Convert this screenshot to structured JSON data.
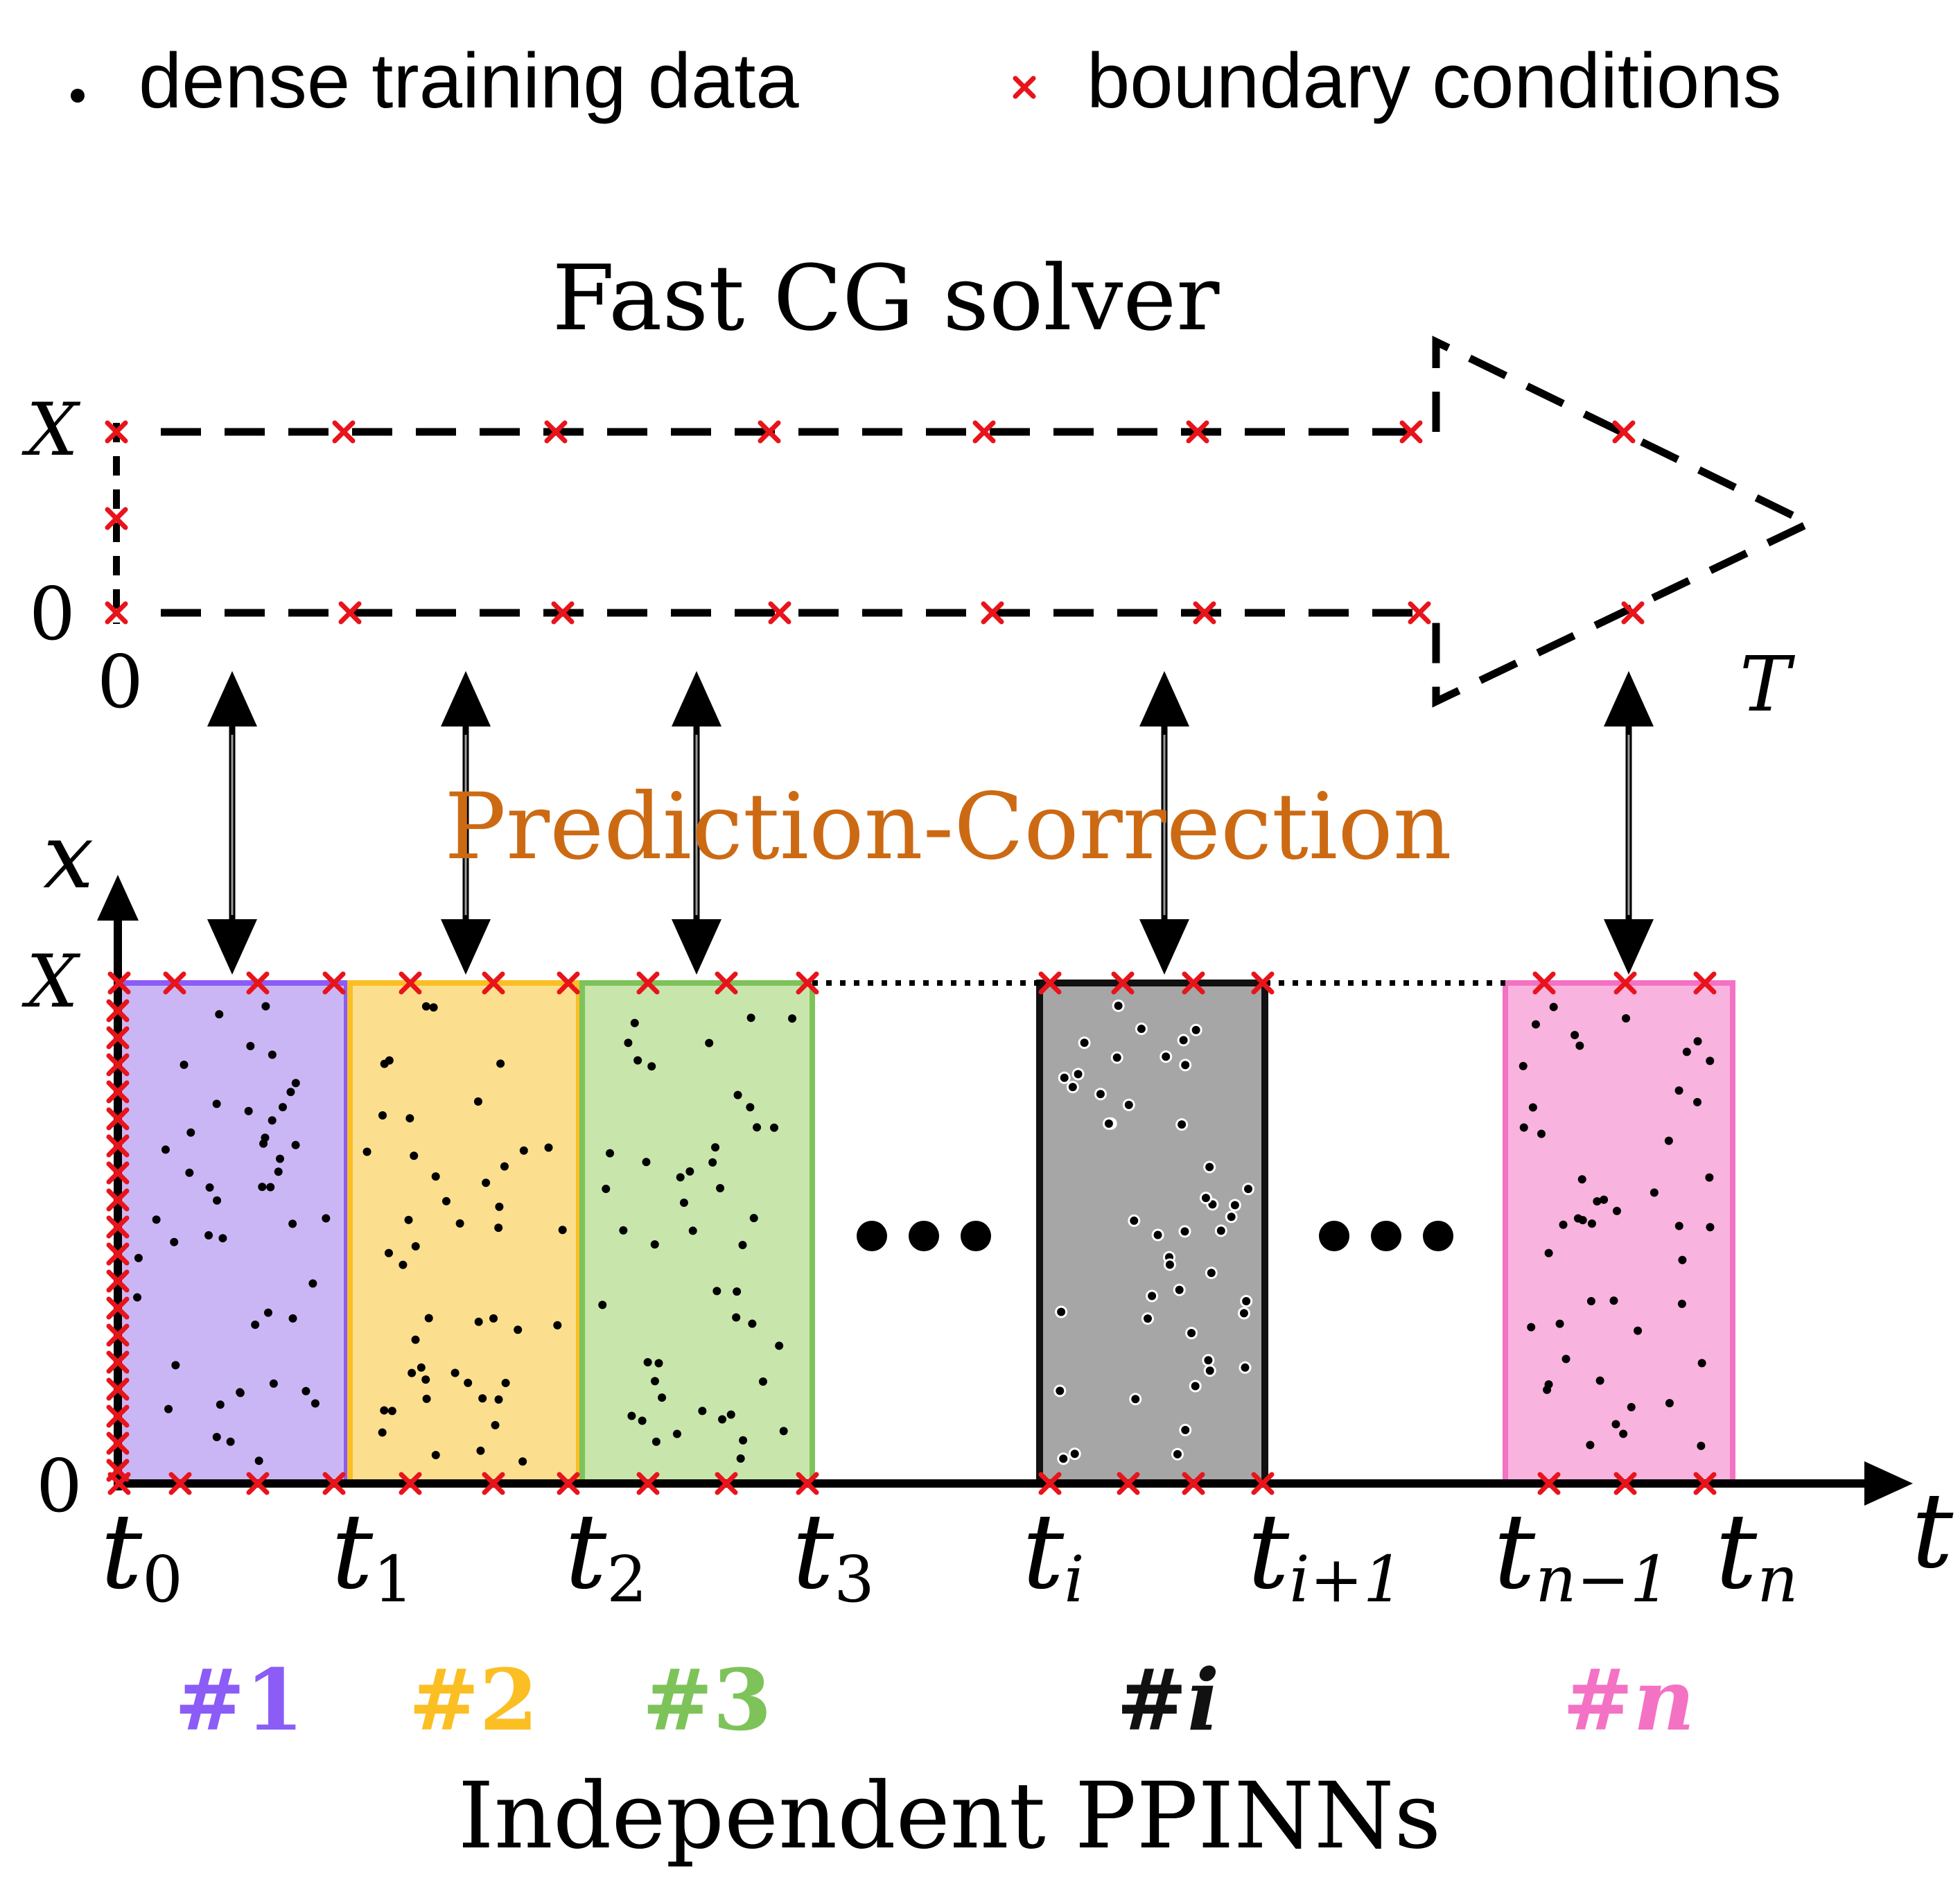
{
  "legend": {
    "dot_label": "dense training data",
    "cross_label": "boundary conditions"
  },
  "solver_title": "Fast CG solver",
  "coarse_axis": {
    "x_top": "X",
    "x_bottom": "0",
    "t_start": "0",
    "t_end": "T"
  },
  "coupling_label": "Prediction-Correction",
  "fine_axis": {
    "x_label": "x",
    "x_top": "X",
    "x_bottom": "0",
    "t_label": "t"
  },
  "time_ticks": [
    {
      "base": "t",
      "sub": "0"
    },
    {
      "base": "t",
      "sub": "1"
    },
    {
      "base": "t",
      "sub": "2"
    },
    {
      "base": "t",
      "sub": "3"
    },
    {
      "base": "t",
      "sub": "i"
    },
    {
      "base": "t",
      "sub": "i+1"
    },
    {
      "base": "t",
      "sub": "n−1"
    },
    {
      "base": "t",
      "sub": "n"
    }
  ],
  "subdomains": [
    {
      "label": "#1",
      "fill": "#cbb6f5",
      "stroke": "#8b5cf6",
      "text_color": "#8b5cf6"
    },
    {
      "label": "#2",
      "fill": "#fbdf8f",
      "stroke": "#fbbf24",
      "text_color": "#fbbf24"
    },
    {
      "label": "#3",
      "fill": "#c8e6ac",
      "stroke": "#7dc35a",
      "text_color": "#7dc35a"
    },
    {
      "label": "#i",
      "fill": "#a6a6a6",
      "stroke": "#111111",
      "text_color": "#111111"
    },
    {
      "label": "#n",
      "fill": "#f9b3df",
      "stroke": "#f472c4",
      "text_color": "#f472c4"
    }
  ],
  "ellipsis": "•••",
  "bottom_title": "Independent PPINNs",
  "colors": {
    "cross": "#e8141b",
    "ink": "#000000",
    "coupling": "#cc6a14"
  }
}
